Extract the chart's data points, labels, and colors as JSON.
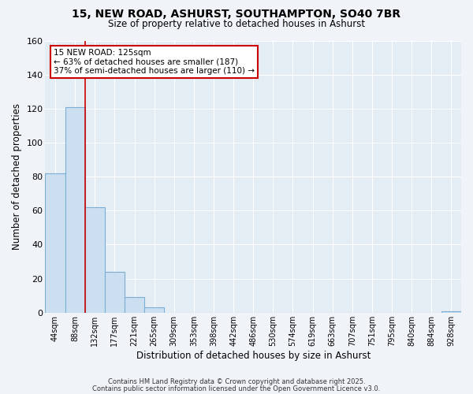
{
  "title_line1": "15, NEW ROAD, ASHURST, SOUTHAMPTON, SO40 7BR",
  "title_line2": "Size of property relative to detached houses in Ashurst",
  "xlabel": "Distribution of detached houses by size in Ashurst",
  "ylabel": "Number of detached properties",
  "bar_labels": [
    "44sqm",
    "88sqm",
    "132sqm",
    "177sqm",
    "221sqm",
    "265sqm",
    "309sqm",
    "353sqm",
    "398sqm",
    "442sqm",
    "486sqm",
    "530sqm",
    "574sqm",
    "619sqm",
    "663sqm",
    "707sqm",
    "751sqm",
    "795sqm",
    "840sqm",
    "884sqm",
    "928sqm"
  ],
  "bar_values": [
    82,
    121,
    62,
    24,
    9,
    3,
    0,
    0,
    0,
    0,
    0,
    0,
    0,
    0,
    0,
    0,
    0,
    0,
    0,
    0,
    1
  ],
  "bar_color": "#ccdff0",
  "bar_edge_color": "#7aaed4",
  "vline_color": "#cc0000",
  "annotation_title": "15 NEW ROAD: 125sqm",
  "annotation_line2": "← 63% of detached houses are smaller (187)",
  "annotation_line3": "37% of semi-detached houses are larger (110) →",
  "annotation_box_color": "#cc0000",
  "ylim": [
    0,
    160
  ],
  "yticks": [
    0,
    20,
    40,
    60,
    80,
    100,
    120,
    140,
    160
  ],
  "footnote1": "Contains HM Land Registry data © Crown copyright and database right 2025.",
  "footnote2": "Contains public sector information licensed under the Open Government Licence v3.0.",
  "background_color": "#f0f4f8",
  "plot_bg_color": "#e4ecf4"
}
